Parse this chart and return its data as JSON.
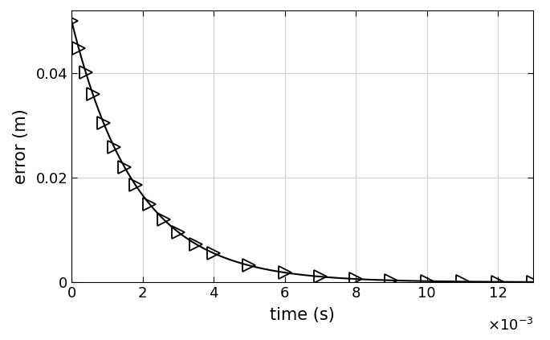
{
  "title": "",
  "xlabel": "time (s)",
  "ylabel": "error (m)",
  "xlim": [
    0,
    0.013
  ],
  "ylim": [
    0,
    0.052
  ],
  "decay_amplitude": 0.05,
  "decay_rate": 550,
  "marker_times": [
    0.0,
    0.0002,
    0.0004,
    0.0006,
    0.0009,
    0.0012,
    0.0015,
    0.0018,
    0.0022,
    0.0026,
    0.003,
    0.0035,
    0.004,
    0.005,
    0.006,
    0.007,
    0.008,
    0.009,
    0.01,
    0.011,
    0.012,
    0.013
  ],
  "line_color": "#000000",
  "marker_color": "#000000",
  "background_color": "#ffffff",
  "grid_color": "#d0d0d0",
  "label_fontsize": 15,
  "tick_fontsize": 13,
  "marker_size": 11,
  "marker_edge_width": 1.3,
  "line_width": 1.5,
  "xtick_vals": [
    0,
    0.002,
    0.004,
    0.006,
    0.008,
    0.01,
    0.012
  ],
  "xtick_labels": [
    "0",
    "2",
    "4",
    "6",
    "8",
    "10",
    "12"
  ],
  "ytick_vals": [
    0,
    0.02,
    0.04
  ],
  "ytick_labels": [
    "0",
    "0.02",
    "0.04"
  ]
}
